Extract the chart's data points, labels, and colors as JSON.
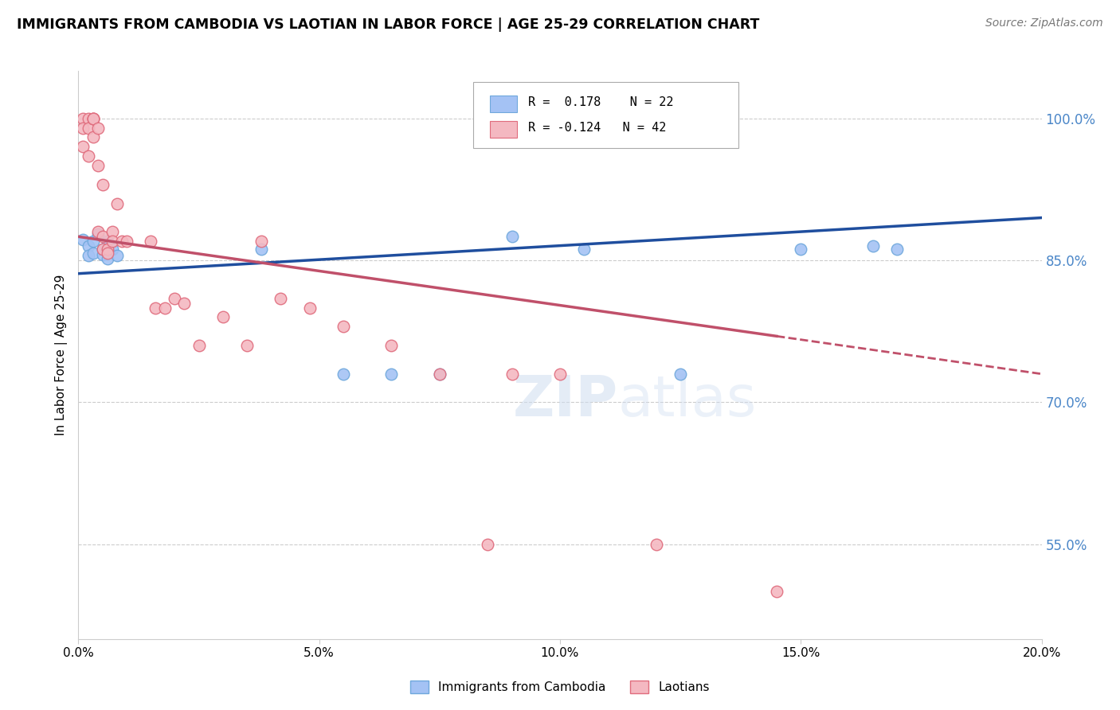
{
  "title": "IMMIGRANTS FROM CAMBODIA VS LAOTIAN IN LABOR FORCE | AGE 25-29 CORRELATION CHART",
  "source": "Source: ZipAtlas.com",
  "ylabel": "In Labor Force | Age 25-29",
  "xlim": [
    0.0,
    0.2
  ],
  "ylim": [
    0.45,
    1.05
  ],
  "ytick_labels": [
    "55.0%",
    "70.0%",
    "85.0%",
    "100.0%"
  ],
  "ytick_vals": [
    0.55,
    0.7,
    0.85,
    1.0
  ],
  "xtick_labels": [
    "0.0%",
    "5.0%",
    "10.0%",
    "15.0%",
    "20.0%"
  ],
  "xtick_vals": [
    0.0,
    0.05,
    0.1,
    0.15,
    0.2
  ],
  "background_color": "#ffffff",
  "cambodia_color": "#a4c2f4",
  "cambodia_edge": "#6fa8dc",
  "laotian_color": "#f4b8c1",
  "laotian_edge": "#e06c7d",
  "cambodia_R": 0.178,
  "cambodia_N": 22,
  "laotian_R": -0.124,
  "laotian_N": 42,
  "cambodia_line_color": "#1f4e9e",
  "laotian_line_solid_color": "#c0506a",
  "laotian_line_dash_color": "#c0506a",
  "grid_color": "#cccccc",
  "right_axis_color": "#4a86c8",
  "cambodia_x": [
    0.001,
    0.002,
    0.002,
    0.003,
    0.003,
    0.004,
    0.005,
    0.005,
    0.006,
    0.006,
    0.007,
    0.008,
    0.038,
    0.055,
    0.065,
    0.075,
    0.09,
    0.105,
    0.125,
    0.15,
    0.165,
    0.17
  ],
  "cambodia_y": [
    0.872,
    0.865,
    0.855,
    0.87,
    0.858,
    0.878,
    0.856,
    0.862,
    0.87,
    0.852,
    0.862,
    0.855,
    0.862,
    0.73,
    0.73,
    0.73,
    0.875,
    0.862,
    0.73,
    0.862,
    0.865,
    0.862
  ],
  "laotian_x": [
    0.001,
    0.001,
    0.001,
    0.002,
    0.002,
    0.002,
    0.003,
    0.003,
    0.003,
    0.003,
    0.004,
    0.004,
    0.004,
    0.005,
    0.005,
    0.005,
    0.006,
    0.006,
    0.007,
    0.007,
    0.008,
    0.009,
    0.01,
    0.015,
    0.016,
    0.018,
    0.02,
    0.022,
    0.025,
    0.03,
    0.035,
    0.038,
    0.042,
    0.048,
    0.055,
    0.065,
    0.075,
    0.085,
    0.09,
    0.1,
    0.12,
    0.145
  ],
  "laotian_y": [
    1.0,
    0.99,
    0.97,
    1.0,
    0.99,
    0.96,
    1.0,
    1.0,
    1.0,
    0.98,
    0.99,
    0.95,
    0.88,
    0.93,
    0.875,
    0.862,
    0.862,
    0.858,
    0.88,
    0.87,
    0.91,
    0.87,
    0.87,
    0.87,
    0.8,
    0.8,
    0.81,
    0.805,
    0.76,
    0.79,
    0.76,
    0.87,
    0.81,
    0.8,
    0.78,
    0.76,
    0.73,
    0.55,
    0.73,
    0.73,
    0.55,
    0.5
  ]
}
